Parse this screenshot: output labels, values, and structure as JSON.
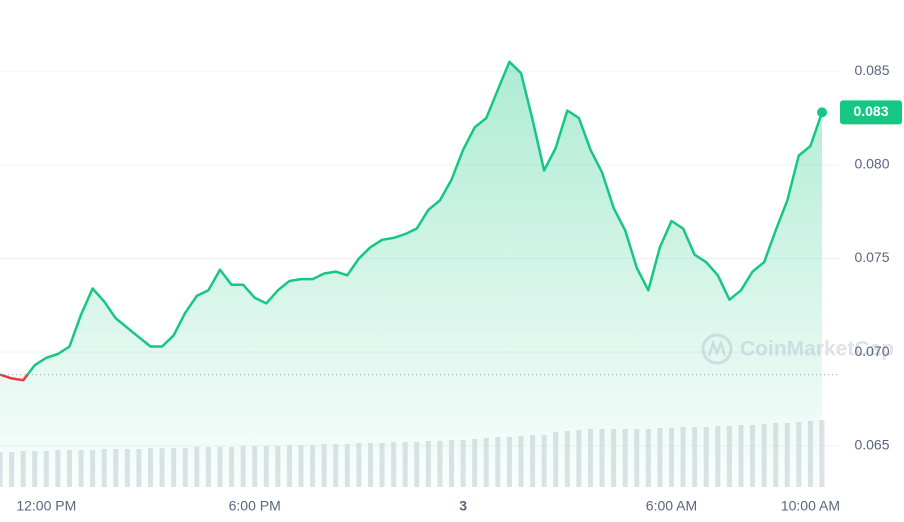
{
  "chart_data": {
    "type": "line",
    "categories": [
      null,
      null,
      null,
      null,
      "12:00 PM",
      null,
      null,
      null,
      null,
      null,
      null,
      null,
      null,
      null,
      null,
      null,
      null,
      null,
      null,
      null,
      null,
      null,
      "6:00 PM",
      null,
      null,
      null,
      null,
      null,
      null,
      null,
      null,
      null,
      null,
      null,
      null,
      null,
      null,
      null,
      null,
      null,
      "3",
      null,
      null,
      null,
      null,
      null,
      null,
      null,
      null,
      null,
      null,
      null,
      null,
      null,
      null,
      null,
      null,
      null,
      "6:00 AM",
      null,
      null,
      null,
      null,
      null,
      null,
      null,
      null,
      null,
      null,
      null,
      "10:00 AM",
      null
    ],
    "series": [
      {
        "color": "#16c784",
        "down_color": "#ea3943",
        "values": [
          0.0688,
          0.0686,
          0.0685,
          0.0693,
          0.0697,
          0.0699,
          0.0703,
          0.072,
          0.0734,
          0.0727,
          0.0718,
          0.0713,
          0.0708,
          0.0703,
          0.0703,
          0.0709,
          0.0721,
          0.073,
          0.0733,
          0.0744,
          0.0736,
          0.0736,
          0.0729,
          0.0726,
          0.0733,
          0.0738,
          0.0739,
          0.0739,
          0.0742,
          0.0743,
          0.0741,
          0.075,
          0.0756,
          0.076,
          0.0761,
          0.0763,
          0.0766,
          0.0776,
          0.0781,
          0.0792,
          0.0808,
          0.082,
          0.0825,
          0.084,
          0.0855,
          0.0849,
          0.0824,
          0.0797,
          0.0809,
          0.0829,
          0.0825,
          0.0808,
          0.0796,
          0.0777,
          0.0765,
          0.0745,
          0.0733,
          0.0756,
          0.077,
          0.0766,
          0.0752,
          0.0748,
          0.0741,
          0.0728,
          0.0733,
          0.0743,
          0.0748,
          0.0765,
          0.0781,
          0.0805,
          0.081,
          0.0828
        ],
        "value_labels": [
          null,
          null,
          null,
          null,
          null,
          null,
          null,
          null,
          null,
          null,
          null,
          null,
          null,
          null,
          null,
          null,
          null,
          null,
          null,
          null,
          null,
          null,
          null,
          null,
          null,
          null,
          null,
          null,
          null,
          null,
          null,
          null,
          null,
          null,
          null,
          null,
          null,
          null,
          null,
          null,
          null,
          null,
          null,
          null,
          null,
          null,
          null,
          null,
          null,
          null,
          null,
          null,
          null,
          null,
          null,
          null,
          null,
          null,
          null,
          null,
          null,
          null,
          null,
          null,
          null,
          null,
          null,
          null,
          null,
          null,
          null,
          "0.083"
        ]
      }
    ],
    "volume": [
      35,
      35,
      36,
      36,
      36,
      37,
      37,
      37,
      37,
      38,
      38,
      38,
      38,
      39,
      39,
      39,
      39,
      40,
      40,
      40,
      40,
      41,
      41,
      41,
      41,
      42,
      42,
      42,
      43,
      43,
      43,
      44,
      44,
      44,
      45,
      45,
      45,
      46,
      46,
      47,
      47,
      48,
      49,
      50,
      50,
      51,
      52,
      52,
      55,
      56,
      57,
      58,
      58,
      58,
      58,
      58,
      58,
      59,
      59,
      60,
      60,
      60,
      61,
      61,
      62,
      62,
      63,
      64,
      64,
      65,
      66,
      67
    ],
    "volume_lim": [
      0,
      100
    ],
    "volume_color": "#dfe3e8",
    "baseline": 0.0688,
    "ylim": [
      0.0628,
      0.0888
    ],
    "yticks": [
      0.065,
      {
        "value": 0.07,
        "label": "0.070"
      },
      0.075,
      {
        "value": 0.08,
        "label": "0.080"
      },
      0.085
    ],
    "grid": true,
    "watermark": "CoinMarketCap"
  }
}
